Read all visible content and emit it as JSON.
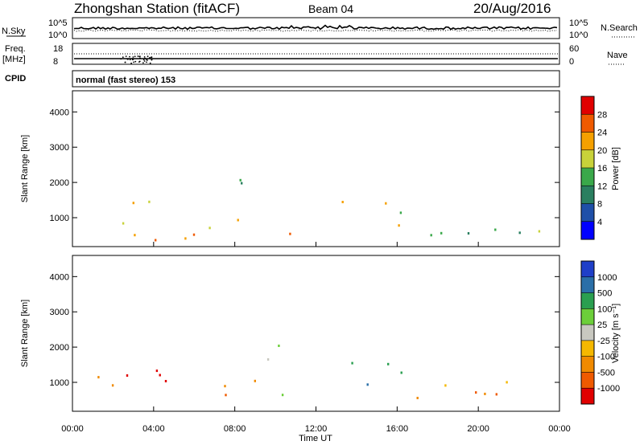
{
  "header": {
    "station": "Zhongshan Station (fitACF)",
    "beam": "Beam 04",
    "date": "20/Aug/2016"
  },
  "top_panels": {
    "nsky_label": "N.Sky",
    "nsky_ticks": [
      "10^5",
      "10^0"
    ],
    "nsearch_label": "N.Search",
    "nsearch_ticks": [
      "10^5",
      "10^0"
    ],
    "freq_label_1": "Freq.",
    "freq_label_2": "[MHz]",
    "freq_ticks": [
      "18",
      "8"
    ],
    "nave_label": "Nave",
    "nave_ticks": [
      "60",
      "0"
    ],
    "cpid_label": "CPID",
    "mode_text": "normal (fast stereo) 153"
  },
  "chart_data": [
    {
      "type": "heatmap",
      "name": "power",
      "ylabel": "Slant Range [km]",
      "yticks": [
        1000,
        2000,
        3000,
        4000
      ],
      "ylim": [
        180,
        4600
      ],
      "xlim_hours": [
        0,
        24
      ],
      "colorbar_label": "Power [dB]",
      "colorbar_ticks": [
        "4",
        "8",
        "12",
        "16",
        "20",
        "24",
        "28"
      ],
      "colors": [
        "#0000ff",
        "#1f4fa8",
        "#2a7f60",
        "#3aa84a",
        "#c8d23a",
        "#f5a000",
        "#ef5a00",
        "#e00000"
      ],
      "regions": [
        {
          "t0": 0.8,
          "t1": 4.5,
          "r0": 300,
          "r1": 1600,
          "level": 5
        },
        {
          "t0": 4.5,
          "t1": 9.0,
          "r0": 300,
          "r1": 1100,
          "level": 5
        },
        {
          "t0": 9.0,
          "t1": 11.0,
          "r0": 500,
          "r1": 1000,
          "level": 5
        },
        {
          "t0": 8.0,
          "t1": 10.2,
          "r0": 1500,
          "r1": 2400,
          "level": 2
        },
        {
          "t0": 13.2,
          "t1": 16.5,
          "r0": 500,
          "r1": 1600,
          "level": 4
        },
        {
          "t0": 16.5,
          "t1": 23.7,
          "r0": 400,
          "r1": 1100,
          "level": 3
        }
      ]
    },
    {
      "type": "heatmap",
      "name": "velocity",
      "ylabel": "Slant Range [km]",
      "yticks": [
        1000,
        2000,
        3000,
        4000
      ],
      "ylim": [
        180,
        4600
      ],
      "xlim_hours": [
        0,
        24
      ],
      "xticks": [
        "00:00",
        "04:00",
        "08:00",
        "12:00",
        "16:00",
        "20:00",
        "00:00"
      ],
      "xlabel": "Time UT",
      "colorbar_label": "Velocity [m s⁻¹]",
      "colorbar_ticks": [
        "-1000",
        "-500",
        "-100",
        "-25",
        "25",
        "100",
        "500",
        "1000"
      ],
      "colors": [
        "#e00000",
        "#ef5a00",
        "#f08a00",
        "#f5b800",
        "#c8c8c0",
        "#6ccf3a",
        "#2a9f50",
        "#2a6fa8",
        "#1f3fc8"
      ],
      "regions": [
        {
          "t0": 0.8,
          "t1": 4.5,
          "r0": 300,
          "r1": 1600,
          "level": 1
        },
        {
          "t0": 4.5,
          "t1": 9.0,
          "r0": 300,
          "r1": 1100,
          "level": 1
        },
        {
          "t0": 9.0,
          "t1": 11.0,
          "r0": 500,
          "r1": 1000,
          "level": 6
        },
        {
          "t0": 8.0,
          "t1": 10.2,
          "r0": 1500,
          "r1": 2400,
          "level": 4
        },
        {
          "t0": 13.2,
          "t1": 16.5,
          "r0": 500,
          "r1": 1600,
          "level": 6
        },
        {
          "t0": 16.5,
          "t1": 23.7,
          "r0": 400,
          "r1": 1100,
          "level": 2
        }
      ]
    }
  ]
}
